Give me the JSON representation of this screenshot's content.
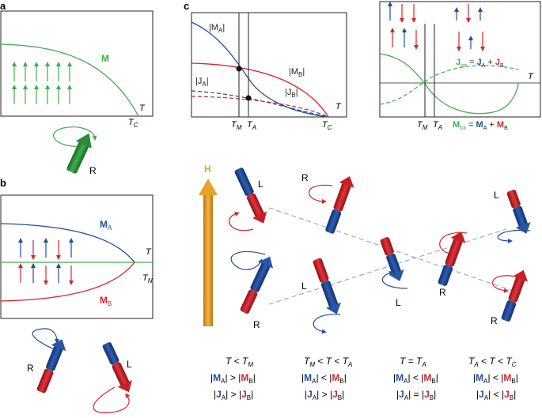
{
  "colors": {
    "green": "#3fae49",
    "blue": "#1f4e9e",
    "red": "#d9252b",
    "orange": "#e8a22a",
    "dark_green": "#1f7a2e",
    "axis": "#222222"
  },
  "panel_a": {
    "label": "a",
    "curve_label": "M",
    "axis_label": "T",
    "tc_label": "T",
    "tc_sub": "C",
    "rotor_label": "R"
  },
  "panel_b": {
    "label": "b",
    "ma_label": "M",
    "ma_sub": "A",
    "mb_label": "M",
    "mb_sub": "B",
    "axis_label": "T",
    "tn_label": "T",
    "tn_sub": "N",
    "rotor_r": "R",
    "rotor_l": "L"
  },
  "panel_c": {
    "label": "c",
    "left_plot": {
      "ma": "|M",
      "ma_sub": "A",
      "ma_end": "|",
      "mb": "|M",
      "mb_sub": "B",
      "mb_end": "|",
      "ja": "|J",
      "ja_sub": "A",
      "ja_end": "|",
      "jb": "|J",
      "jb_sub": "B",
      "jb_end": "|",
      "axis_label": "T",
      "tm": "T",
      "tm_sub": "M",
      "ta": "T",
      "ta_sub": "A",
      "tc": "T",
      "tc_sub": "C"
    },
    "right_plot": {
      "jtot_pre": "J",
      "jtot_sub": "tot",
      "jtot_eq": " = ",
      "jtot_a": "J",
      "jtot_a_sub": "A",
      "jtot_plus": " + ",
      "jtot_b": "J",
      "jtot_b_sub": "B",
      "mtot_pre": "M",
      "mtot_sub": "tot",
      "mtot_eq": " = ",
      "mtot_a": "M",
      "mtot_a_sub": "A",
      "mtot_plus": " + ",
      "mtot_b": "M",
      "mtot_b_sub": "B",
      "axis_label": "T",
      "tm": "T",
      "tm_sub": "M",
      "ta": "T",
      "ta_sub": "A"
    },
    "field_label": "H",
    "rotor_labels": [
      "L",
      "R",
      "R",
      "L",
      "L",
      "R",
      "L",
      "R"
    ],
    "conditions": [
      {
        "range": [
          "T",
          " < ",
          "T",
          "M"
        ],
        "m_relation": ">",
        "j_relation": ">"
      },
      {
        "range": [
          "T",
          "M",
          " < T < ",
          "T",
          "A"
        ],
        "m_relation": "<",
        "j_relation": ">"
      },
      {
        "range": [
          "T",
          " = ",
          "T",
          "A"
        ],
        "m_relation": "<",
        "j_relation": "="
      },
      {
        "range": [
          "T",
          "A",
          " < T < ",
          "T",
          "C"
        ],
        "m_relation": "<",
        "j_relation": "<"
      }
    ],
    "cond_text": {
      "c1_range": "T < T",
      "c1_sub": "M",
      "c2_pre": "T",
      "c2_pre_sub": "M",
      "c2_mid": " < T < T",
      "c2_sub": "A",
      "c3_range": "T = T",
      "c3_sub": "A",
      "c4_pre": "T",
      "c4_pre_sub": "A",
      "c4_mid": " < T < T",
      "c4_sub": "C",
      "bar": "|",
      "m": "M",
      "j": "J",
      "a": "A",
      "b": "B",
      "gt": " > ",
      "lt": " < ",
      "eq": " = "
    }
  }
}
